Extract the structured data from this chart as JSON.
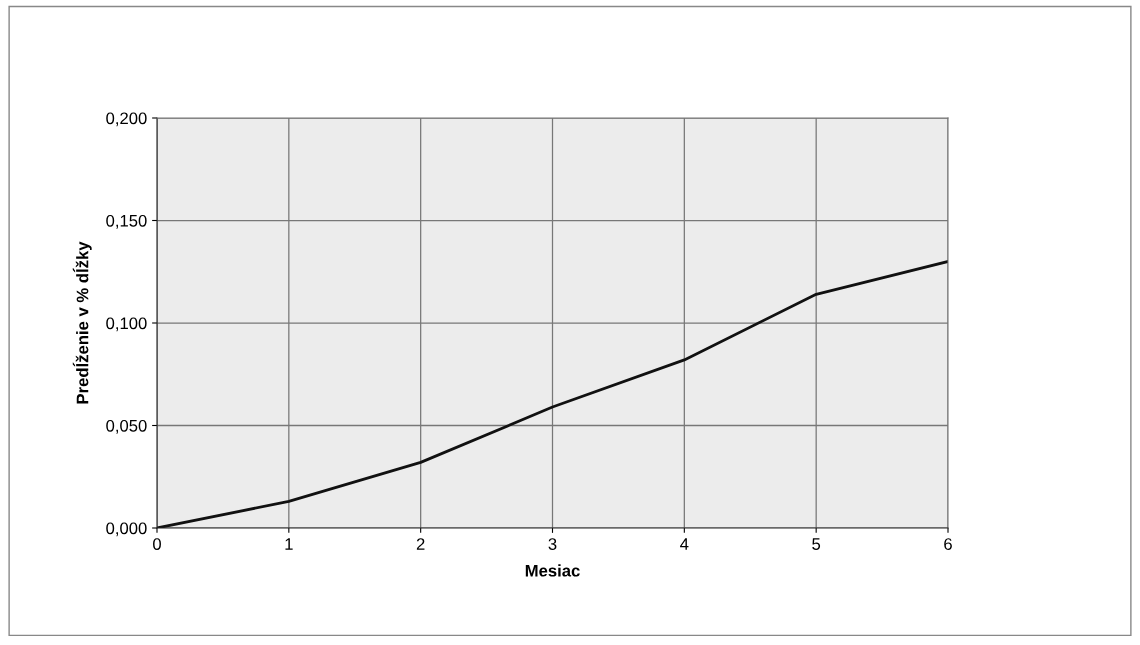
{
  "chart_data": {
    "type": "line",
    "xlabel": "Mesiac",
    "ylabel": "Predĺženie v % dĺžky",
    "x": [
      0,
      1,
      2,
      3,
      4,
      5,
      6
    ],
    "series": [
      {
        "color": "#111111",
        "values": [
          0.0,
          0.013,
          0.032,
          0.059,
          0.082,
          0.114,
          0.13
        ]
      }
    ],
    "xlim": [
      0,
      6
    ],
    "xticks": [
      0,
      1,
      2,
      3,
      4,
      5,
      6
    ],
    "ylim": [
      0,
      0.2
    ],
    "yticks": [
      {
        "value": 0,
        "label": "0,000"
      },
      {
        "value": 0.05,
        "label": "0,050"
      },
      {
        "value": 0.1,
        "label": "0,100"
      },
      {
        "value": 0.15,
        "label": "0,150"
      },
      {
        "value": 0.2,
        "label": "0,200"
      }
    ],
    "grid": true,
    "marker": "none",
    "line_style": "solid"
  }
}
